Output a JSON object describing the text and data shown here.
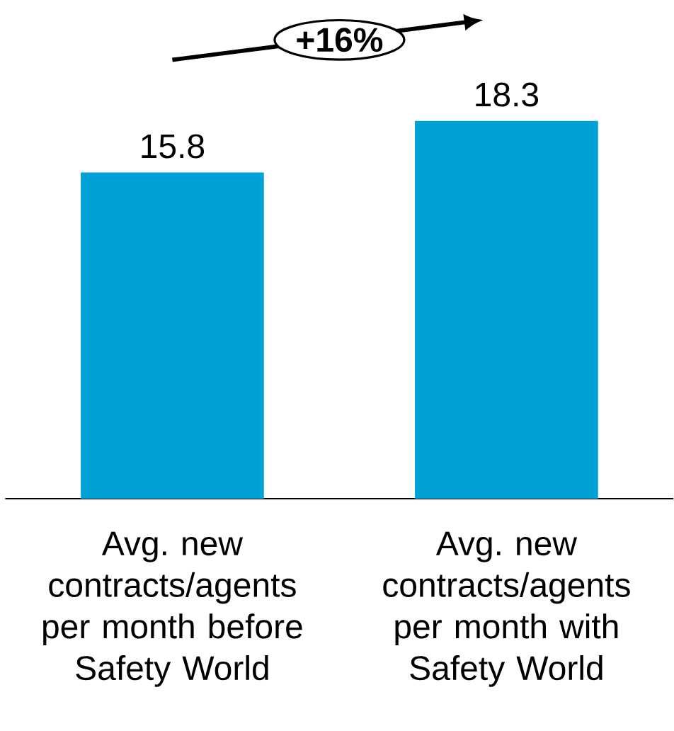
{
  "chart_data": {
    "type": "bar",
    "categories": [
      "Avg. new contracts/agents per month before Safety World",
      "Avg. new contracts/agents per month with Safety World"
    ],
    "values": [
      15.8,
      18.3
    ],
    "color": "#00a2d6",
    "data_labels": true,
    "annotations": [
      "+16%"
    ]
  }
}
